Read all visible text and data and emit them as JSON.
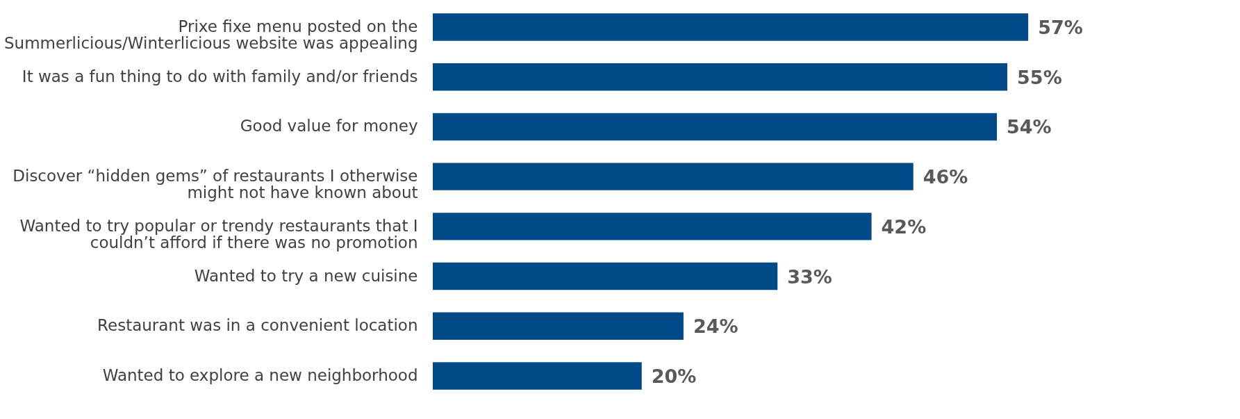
{
  "chart_data": {
    "type": "bar",
    "orientation": "horizontal",
    "categories": [
      "Prixe fixe menu posted on the Summerlicious/Winterlicious website was appealing",
      "It was a fun thing to do with family and/or friends",
      "Good value for money",
      "Discover “hidden gems” of restaurants I otherwise might not have known about",
      "Wanted to try popular or trendy restaurants that I couldn’t afford if there was no promotion",
      "Wanted to try a new cuisine",
      "Restaurant was in a convenient location",
      "Wanted to explore a new neighborhood"
    ],
    "values": [
      57,
      55,
      54,
      46,
      42,
      33,
      24,
      20
    ],
    "value_labels": [
      "57%",
      "55%",
      "54%",
      "46%",
      "42%",
      "33%",
      "24%",
      "20%"
    ],
    "color": "#004b87"
  }
}
